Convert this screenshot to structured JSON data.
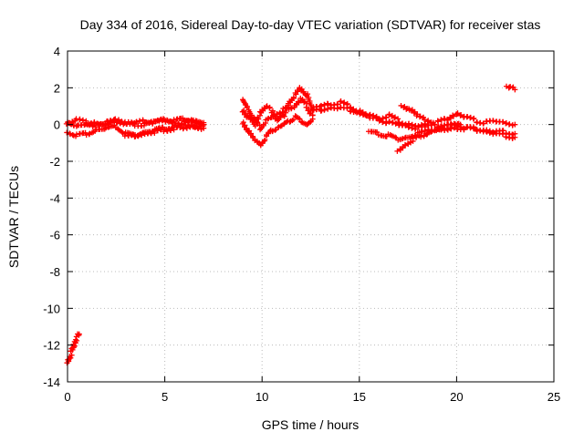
{
  "chart_data": {
    "type": "scatter",
    "title": "Day 334 of 2016, Sidereal Day-to-day VTEC variation (SDTVAR) for receiver stas",
    "xlabel": "GPS time / hours",
    "ylabel": "SDTVAR / TECUs",
    "xlim": [
      0,
      25
    ],
    "ylim": [
      -14,
      4
    ],
    "x_ticks": [
      0,
      5,
      10,
      15,
      20,
      25
    ],
    "y_ticks": [
      4,
      2,
      0,
      -2,
      -4,
      -6,
      -8,
      -10,
      -12,
      -14
    ],
    "x_tick_labels": [
      "0",
      "5",
      "10",
      "15",
      "20",
      "25"
    ],
    "y_tick_labels": [
      "4",
      "2",
      "0",
      "-2",
      "-4",
      "-6",
      "-8",
      "-10",
      "-12",
      "-14"
    ],
    "grid": true,
    "marker": "+",
    "colors": {
      "series": "#ff0000",
      "grid": "#bbbbbb",
      "axis": "#000000"
    },
    "series": [
      {
        "name": "receiver stas",
        "segments": [
          {
            "x": [
              0.0,
              0.5,
              1.0,
              1.5,
              2.0,
              2.5,
              3.0,
              3.5,
              4.0,
              4.5,
              5.0,
              5.5,
              6.0,
              6.5,
              7.0
            ],
            "y": [
              0.2,
              -0.1,
              0.0,
              0.1,
              0.1,
              0.2,
              0.0,
              0.1,
              0.2,
              0.1,
              0.2,
              0.1,
              0.1,
              0.2,
              0.0
            ]
          },
          {
            "x": [
              0.0,
              0.5,
              1.0,
              1.5,
              2.0,
              2.5,
              3.0,
              3.5,
              4.0,
              4.5,
              5.0,
              5.5,
              6.0,
              6.5,
              7.0
            ],
            "y": [
              -0.4,
              -0.6,
              -0.5,
              -0.3,
              -0.2,
              -0.1,
              -0.5,
              -0.6,
              -0.4,
              -0.3,
              -0.2,
              -0.1,
              0.0,
              -0.1,
              -0.2
            ]
          },
          {
            "x": [
              0.0,
              0.5,
              1.0,
              1.5,
              2.0,
              2.5,
              3.0,
              3.5,
              4.0,
              4.5,
              5.0,
              5.5,
              6.0,
              6.5,
              7.0
            ],
            "y": [
              0.0,
              0.3,
              0.1,
              -0.1,
              0.0,
              0.3,
              0.1,
              0.0,
              0.0,
              0.2,
              0.3,
              0.2,
              0.3,
              0.2,
              0.1
            ]
          },
          {
            "x": [
              3.0,
              3.5,
              4.0,
              4.5,
              5.0,
              5.5,
              6.0,
              6.5,
              7.0
            ],
            "y": [
              -0.7,
              -0.6,
              -0.5,
              -0.4,
              -0.3,
              -0.2,
              -0.2,
              -0.1,
              0.0
            ]
          },
          {
            "x": [
              0.0,
              0.1,
              0.2,
              0.3,
              0.4,
              0.5,
              0.6
            ],
            "y": [
              -13.0,
              -12.7,
              -12.4,
              -12.1,
              -11.8,
              -11.6,
              -11.4
            ]
          },
          {
            "x": [
              9.0,
              9.3,
              9.6,
              9.9,
              10.2,
              10.5,
              10.8,
              11.1,
              11.4,
              11.7,
              12.0,
              12.3,
              12.6
            ],
            "y": [
              1.4,
              0.8,
              0.3,
              -0.2,
              0.2,
              0.4,
              0.6,
              0.8,
              0.9,
              1.0,
              1.4,
              1.0,
              0.5
            ]
          },
          {
            "x": [
              9.0,
              9.3,
              9.6,
              9.9,
              10.2,
              10.5,
              10.8,
              11.1,
              11.4,
              11.7,
              12.0,
              12.3,
              12.6
            ],
            "y": [
              0.2,
              -0.4,
              -0.8,
              -1.1,
              -0.7,
              -0.3,
              -0.2,
              0.0,
              0.2,
              0.4,
              0.2,
              0.0,
              0.3
            ]
          },
          {
            "x": [
              9.0,
              9.3,
              9.6,
              9.9,
              10.2,
              10.5,
              10.8,
              11.1,
              11.4,
              11.7,
              12.0,
              12.3,
              12.6
            ],
            "y": [
              0.8,
              0.4,
              0.0,
              0.6,
              1.0,
              0.8,
              0.2,
              0.5,
              1.2,
              1.6,
              2.0,
              1.6,
              0.8
            ]
          },
          {
            "x": [
              12.6,
              13.0,
              13.5,
              14.0,
              14.5,
              15.0,
              15.5,
              16.0,
              16.5,
              17.0,
              17.5,
              18.0,
              18.5,
              19.0,
              19.5,
              20.0,
              20.5,
              21.0,
              21.5,
              22.0,
              22.5,
              23.0
            ],
            "y": [
              0.9,
              1.0,
              1.1,
              1.2,
              1.0,
              0.6,
              0.5,
              0.3,
              0.1,
              0.0,
              -0.1,
              -0.2,
              -0.2,
              -0.3,
              -0.3,
              -0.2,
              -0.2,
              -0.3,
              -0.3,
              -0.4,
              -0.4,
              -0.5
            ]
          },
          {
            "x": [
              12.6,
              13.0,
              13.5,
              14.0,
              14.5,
              15.0,
              15.5,
              16.0,
              16.5,
              17.0,
              17.5,
              18.0,
              18.5,
              19.0,
              19.5,
              20.0,
              20.5,
              21.0,
              21.5,
              22.0,
              22.5,
              23.0
            ],
            "y": [
              0.7,
              0.8,
              0.9,
              0.9,
              0.8,
              0.7,
              0.4,
              0.3,
              0.5,
              0.2,
              0.0,
              -0.1,
              0.0,
              0.1,
              0.3,
              0.6,
              0.4,
              0.2,
              0.1,
              0.2,
              0.1,
              0.0
            ]
          },
          {
            "x": [
              15.5,
              16.0,
              16.5,
              17.0,
              17.5,
              18.0,
              18.5,
              19.0,
              19.5,
              20.0,
              20.5,
              21.0,
              21.5,
              22.0,
              22.5,
              23.0
            ],
            "y": [
              -0.4,
              -0.5,
              -0.6,
              -0.8,
              -0.7,
              -0.5,
              -0.4,
              -0.2,
              0.0,
              0.0,
              -0.2,
              -0.2,
              -0.4,
              -0.5,
              -0.6,
              -0.7
            ]
          },
          {
            "x": [
              17.0,
              17.4,
              17.8,
              18.2,
              18.6,
              19.0,
              19.4,
              19.8,
              20.2
            ],
            "y": [
              -1.4,
              -1.1,
              -0.8,
              -0.6,
              -0.4,
              -0.3,
              -0.2,
              -0.1,
              0.0
            ]
          },
          {
            "x": [
              17.2,
              17.6,
              18.0,
              18.4,
              18.8
            ],
            "y": [
              1.1,
              0.8,
              0.5,
              0.3,
              0.1
            ]
          },
          {
            "x": [
              22.6,
              22.8,
              23.0
            ],
            "y": [
              2.1,
              2.0,
              1.9
            ]
          }
        ]
      }
    ]
  }
}
